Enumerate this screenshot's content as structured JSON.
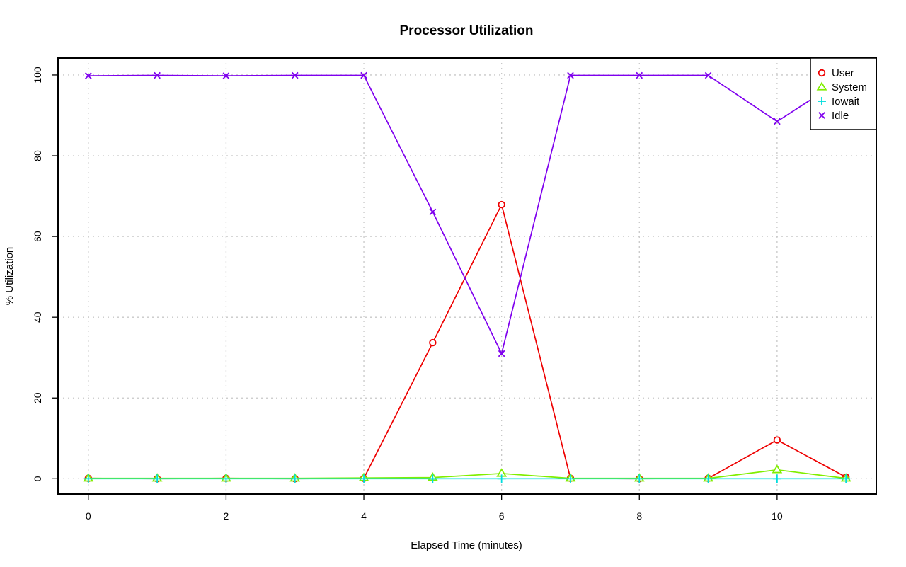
{
  "chart_data": {
    "type": "line",
    "title": "Processor Utilization",
    "xlabel": "Elapsed Time (minutes)",
    "ylabel": "% Utilization",
    "xlim": [
      -0.44,
      11.44
    ],
    "ylim": [
      -3.8,
      104.2
    ],
    "x_ticks": [
      0,
      2,
      4,
      6,
      8,
      10
    ],
    "y_ticks": [
      0,
      20,
      40,
      60,
      80,
      100
    ],
    "grid": true,
    "legend_position": "top-right",
    "x": [
      0,
      1,
      2,
      3,
      4,
      5,
      6,
      7,
      8,
      9,
      10,
      11
    ],
    "series": [
      {
        "name": "User",
        "marker": "circle",
        "color": "#ee0000",
        "values": [
          0.1,
          0.0,
          0.1,
          0.0,
          0.1,
          33.7,
          67.9,
          0.1,
          0.0,
          0.1,
          9.6,
          0.4
        ]
      },
      {
        "name": "System",
        "marker": "triangle",
        "color": "#80ee00",
        "values": [
          0.1,
          0.1,
          0.1,
          0.1,
          0.2,
          0.3,
          1.3,
          0.1,
          0.1,
          0.1,
          2.2,
          0.1
        ]
      },
      {
        "name": "Iowait",
        "marker": "plus",
        "color": "#00dddd",
        "values": [
          0.0,
          0.0,
          0.0,
          0.0,
          0.0,
          0.0,
          0.0,
          0.0,
          0.0,
          0.0,
          0.0,
          0.0
        ]
      },
      {
        "name": "Idle",
        "marker": "cross",
        "color": "#7f00ee",
        "values": [
          99.8,
          99.9,
          99.8,
          99.9,
          99.9,
          66.1,
          31.0,
          99.9,
          99.9,
          99.9,
          88.5,
          99.5
        ]
      }
    ]
  }
}
